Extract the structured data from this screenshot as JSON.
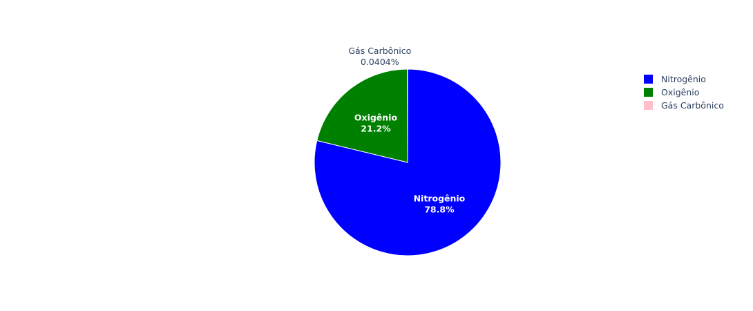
{
  "chart_data": {
    "type": "pie",
    "labels": [
      "Nitrogênio",
      "Oxigênio",
      "Gás Carbônico"
    ],
    "values": [
      78.8,
      21.2,
      0.0404
    ],
    "percent_labels": [
      "78.8%",
      "21.2%",
      "0.0404%"
    ],
    "colors": [
      "#0000ff",
      "#008000",
      "#ffc0cb"
    ],
    "text_position": [
      "inside",
      "inside",
      "outside"
    ],
    "direction": "clockwise",
    "start": "top",
    "legend": {
      "placement": "top-right",
      "entries": [
        "Nitrogênio",
        "Oxigênio",
        "Gás Carbônico"
      ]
    }
  }
}
